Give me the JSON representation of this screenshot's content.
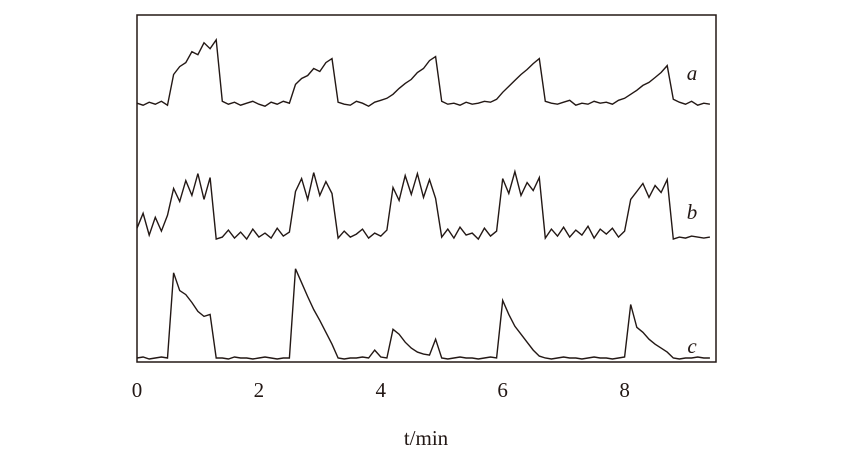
{
  "chart_data": {
    "type": "line",
    "x_label": "t/min",
    "x": [
      0,
      0.1,
      0.2,
      0.3,
      0.4,
      0.5,
      0.6,
      0.7,
      0.8,
      0.9,
      1,
      1.1,
      1.2,
      1.3,
      1.4,
      1.5,
      1.6,
      1.7,
      1.8,
      1.9,
      2,
      2.1,
      2.2,
      2.3,
      2.4,
      2.5,
      2.6,
      2.7,
      2.8,
      2.9,
      3,
      3.1,
      3.2,
      3.3,
      3.4,
      3.5,
      3.6,
      3.7,
      3.8,
      3.9,
      4,
      4.1,
      4.2,
      4.3,
      4.4,
      4.5,
      4.6,
      4.7,
      4.8,
      4.9,
      5,
      5.1,
      5.2,
      5.3,
      5.4,
      5.5,
      5.6,
      5.7,
      5.8,
      5.9,
      6,
      6.1,
      6.2,
      6.3,
      6.4,
      6.5,
      6.6,
      6.7,
      6.8,
      6.9,
      7,
      7.1,
      7.2,
      7.3,
      7.4,
      7.5,
      7.6,
      7.7,
      7.8,
      7.9,
      8,
      8.1,
      8.2,
      8.3,
      8.4,
      8.5,
      8.6,
      8.7,
      8.8,
      8.9,
      9,
      9.1,
      9.2,
      9.3,
      9.4
    ],
    "series": [
      {
        "name": "a",
        "color": "#231815",
        "values": [
          26.1,
          25.9,
          26.2,
          26.0,
          26.3,
          25.9,
          29,
          29.8,
          30.2,
          31.3,
          31.0,
          32.2,
          31.6,
          32.5,
          26.3,
          26,
          26.2,
          25.9,
          26.1,
          26.3,
          26.0,
          25.8,
          26.2,
          26.0,
          26.3,
          26.1,
          28.0,
          28.6,
          28.9,
          29.6,
          29.3,
          30.2,
          30.6,
          26.2,
          26.0,
          25.9,
          26.3,
          26.1,
          25.8,
          26.2,
          26.4,
          26.6,
          27.0,
          27.6,
          28.1,
          28.5,
          29.2,
          29.6,
          30.4,
          30.8,
          26.3,
          26.0,
          26.1,
          25.9,
          26.2,
          26.0,
          26.1,
          26.3,
          26.2,
          26.5,
          27.2,
          27.8,
          28.4,
          29.0,
          29.5,
          30.1,
          30.6,
          26.3,
          26.1,
          26.0,
          26.2,
          26.4,
          25.9,
          26.1,
          26.0,
          26.3,
          26.1,
          26.2,
          26.0,
          26.4,
          26.6,
          27.0,
          27.4,
          27.9,
          28.2,
          28.7,
          29.2,
          29.9,
          26.5,
          26.2,
          26.0,
          26.3,
          25.9,
          26.1,
          26.0
        ]
      },
      {
        "name": "b",
        "color": "#231815",
        "values": [
          13.5,
          15,
          12.8,
          14.6,
          13.2,
          14.8,
          17.5,
          16.2,
          18.3,
          16.8,
          19,
          16.4,
          18.6,
          12.4,
          12.6,
          13.3,
          12.5,
          13.1,
          12.4,
          13.4,
          12.6,
          13.0,
          12.5,
          13.5,
          12.7,
          13.1,
          17.2,
          18.5,
          16.4,
          19.1,
          16.8,
          18.2,
          17.0,
          12.5,
          13.2,
          12.6,
          12.9,
          13.4,
          12.5,
          13.0,
          12.7,
          13.3,
          17.6,
          16.3,
          18.8,
          16.9,
          19.0,
          16.6,
          18.4,
          16.5,
          12.6,
          13.4,
          12.5,
          13.6,
          12.8,
          13.0,
          12.4,
          13.5,
          12.7,
          13.2,
          18.5,
          17.0,
          19.2,
          16.8,
          18.1,
          17.3,
          18.6,
          12.5,
          13.4,
          12.7,
          13.6,
          12.6,
          13.3,
          12.8,
          13.7,
          12.5,
          13.4,
          12.9,
          13.5,
          12.6,
          13.2,
          16.4,
          17.2,
          18.0,
          16.6,
          17.8,
          17.1,
          18.4,
          12.4,
          12.6,
          12.5,
          12.7,
          12.6,
          12.5,
          12.6
        ]
      },
      {
        "name": "c",
        "color": "#231815",
        "values": [
          0.4,
          0.5,
          0.3,
          0.4,
          0.5,
          0.4,
          9.0,
          7.2,
          6.8,
          6.0,
          5.1,
          4.6,
          4.8,
          0.4,
          0.4,
          0.3,
          0.5,
          0.4,
          0.4,
          0.3,
          0.4,
          0.5,
          0.4,
          0.3,
          0.4,
          0.4,
          9.4,
          8.0,
          6.6,
          5.3,
          4.2,
          3.0,
          1.8,
          0.4,
          0.3,
          0.4,
          0.4,
          0.5,
          0.4,
          1.2,
          0.5,
          0.4,
          3.3,
          2.8,
          2.0,
          1.4,
          1.0,
          0.8,
          0.7,
          2.3,
          0.4,
          0.3,
          0.4,
          0.5,
          0.4,
          0.4,
          0.3,
          0.4,
          0.5,
          0.4,
          6.2,
          4.8,
          3.6,
          2.8,
          2.0,
          1.2,
          0.6,
          0.4,
          0.3,
          0.4,
          0.5,
          0.4,
          0.4,
          0.3,
          0.4,
          0.5,
          0.4,
          0.4,
          0.3,
          0.4,
          0.5,
          5.8,
          3.5,
          3.0,
          2.3,
          1.8,
          1.4,
          1.0,
          0.4,
          0.3,
          0.4,
          0.4,
          0.5,
          0.4,
          0.4
        ]
      }
    ],
    "xlim": [
      0,
      9.5
    ],
    "ylim": [
      0,
      35
    ],
    "xticks": [
      0,
      2,
      4,
      6,
      8
    ],
    "grid": false
  }
}
